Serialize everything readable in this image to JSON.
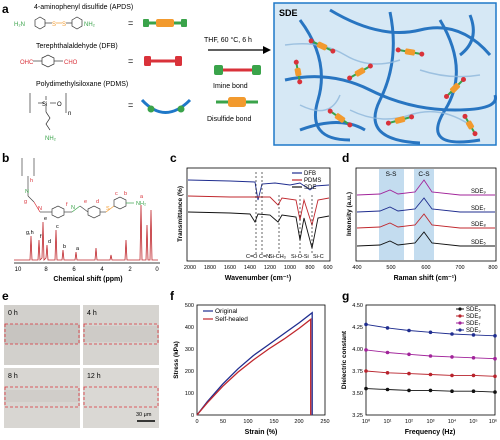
{
  "panels": {
    "a": {
      "letter": "a",
      "reagents": [
        {
          "name": "4-aminophenyl disulfide (APDS)",
          "group_left": "H₂N",
          "group_right": "NH₂"
        },
        {
          "name": "Terephthalaldehyde (DFB)",
          "group_left": "OHC",
          "group_right": "CHO"
        },
        {
          "name": "Polydimethylsiloxane (PDMS)",
          "si_label": "Si",
          "o_label": "O",
          "n_label": "n",
          "nh2": "NH₂"
        }
      ],
      "equals": "=",
      "conditions": "THF, 60 °C, 6 h",
      "bond_imine": "Imine bond",
      "bond_disulfide": "Disulfide bond",
      "network_label": "SDE",
      "colors": {
        "apds_orange": "#f29a2e",
        "apds_green": "#3aa34a",
        "dfb_red": "#d9323a",
        "pdms_blue": "#1f78c8",
        "box_bg": "#d6e8f5"
      }
    },
    "b": {
      "letter": "b",
      "xlabel": "Chemical shift (ppm)",
      "xticks": [
        "10",
        "8",
        "6",
        "4",
        "2",
        "0"
      ],
      "structure_labels": [
        "h",
        "g",
        "f",
        "e",
        "d",
        "c",
        "b",
        "a"
      ],
      "peak_labels": [
        "g,h",
        "f",
        "e",
        "d",
        "c",
        "b",
        "a"
      ]
    },
    "c": {
      "letter": "c",
      "ylabel": "Transmittance (%)",
      "xlabel": "Wavenumber (cm⁻¹)",
      "xticks": [
        "2000",
        "1800",
        "1600",
        "1400",
        "1200",
        "1000",
        "800",
        "600"
      ],
      "legend": [
        "DFB",
        "PDMS",
        "SDE"
      ],
      "annotations": [
        "C=O",
        "C=N",
        "Si-CH₃",
        "Si-O-Si",
        "Si-C"
      ]
    },
    "d": {
      "letter": "d",
      "ylabel": "Intensity (a.u.)",
      "xlabel": "Raman shift (cm⁻¹)",
      "xticks": [
        "400",
        "500",
        "600",
        "700",
        "800"
      ],
      "bands": [
        "S-S",
        "C-S"
      ],
      "series": [
        "SDE₉",
        "SDE₇",
        "SDE₈",
        "SDE₅"
      ]
    },
    "e": {
      "letter": "e",
      "times": [
        "0 h",
        "4 h",
        "8 h",
        "12 h"
      ],
      "scalebar": "30 μm"
    },
    "f": {
      "letter": "f",
      "ylabel": "Stress (kPa)",
      "xlabel": "Strain (%)",
      "xticks": [
        "0",
        "50",
        "100",
        "150",
        "200",
        "250"
      ],
      "yticks": [
        "0",
        "100",
        "200",
        "300",
        "400",
        "500"
      ],
      "legend": [
        "Original",
        "Self-healed"
      ]
    },
    "g": {
      "letter": "g",
      "ylabel": "Dielectric constant",
      "xlabel": "Frequency (Hz)",
      "xticks": [
        "10⁰",
        "10¹",
        "10²",
        "10³",
        "10⁴",
        "10⁵",
        "10⁶"
      ],
      "yticks": [
        "3.25",
        "3.50",
        "3.75",
        "4.00",
        "4.25",
        "4.50"
      ],
      "legend": [
        "SDE₅",
        "SDE₈",
        "SDE₇",
        "SDE₉"
      ]
    }
  },
  "chart_data": [
    {
      "type": "line",
      "panel": "f",
      "xlabel": "Strain (%)",
      "ylabel": "Stress (kPa)",
      "xlim": [
        0,
        250
      ],
      "ylim": [
        0,
        500
      ],
      "series": [
        {
          "name": "Original",
          "color": "#1f2d8f",
          "x": [
            0,
            20,
            50,
            80,
            110,
            140,
            170,
            200,
            225,
            225
          ],
          "y": [
            0,
            60,
            140,
            210,
            270,
            320,
            370,
            420,
            465,
            0
          ]
        },
        {
          "name": "Self-healed",
          "color": "#c0272d",
          "x": [
            0,
            20,
            50,
            80,
            110,
            140,
            170,
            200,
            222,
            222
          ],
          "y": [
            0,
            55,
            130,
            195,
            250,
            300,
            345,
            395,
            435,
            0
          ]
        }
      ]
    },
    {
      "type": "scatter",
      "panel": "g",
      "xlabel": "Frequency (Hz)",
      "ylabel": "Dielectric constant",
      "xscale": "log",
      "xlim": [
        1,
        1000000
      ],
      "ylim": [
        3.25,
        4.5
      ],
      "series": [
        {
          "name": "SDE₅",
          "color": "#111111",
          "x": [
            1,
            10,
            100,
            1000,
            10000,
            100000,
            1000000
          ],
          "y": [
            3.55,
            3.54,
            3.53,
            3.53,
            3.52,
            3.52,
            3.51
          ]
        },
        {
          "name": "SDE₈",
          "color": "#b8232c",
          "x": [
            1,
            10,
            100,
            1000,
            10000,
            100000,
            1000000
          ],
          "y": [
            3.75,
            3.73,
            3.72,
            3.71,
            3.7,
            3.7,
            3.69
          ]
        },
        {
          "name": "SDE₇",
          "color": "#a1239a",
          "x": [
            1,
            10,
            100,
            1000,
            10000,
            100000,
            1000000
          ],
          "y": [
            3.99,
            3.96,
            3.94,
            3.92,
            3.91,
            3.9,
            3.89
          ]
        },
        {
          "name": "SDE₉",
          "color": "#1f2d8f",
          "x": [
            1,
            10,
            100,
            1000,
            10000,
            100000,
            1000000
          ],
          "y": [
            4.28,
            4.24,
            4.21,
            4.19,
            4.17,
            4.16,
            4.15
          ]
        }
      ]
    }
  ]
}
